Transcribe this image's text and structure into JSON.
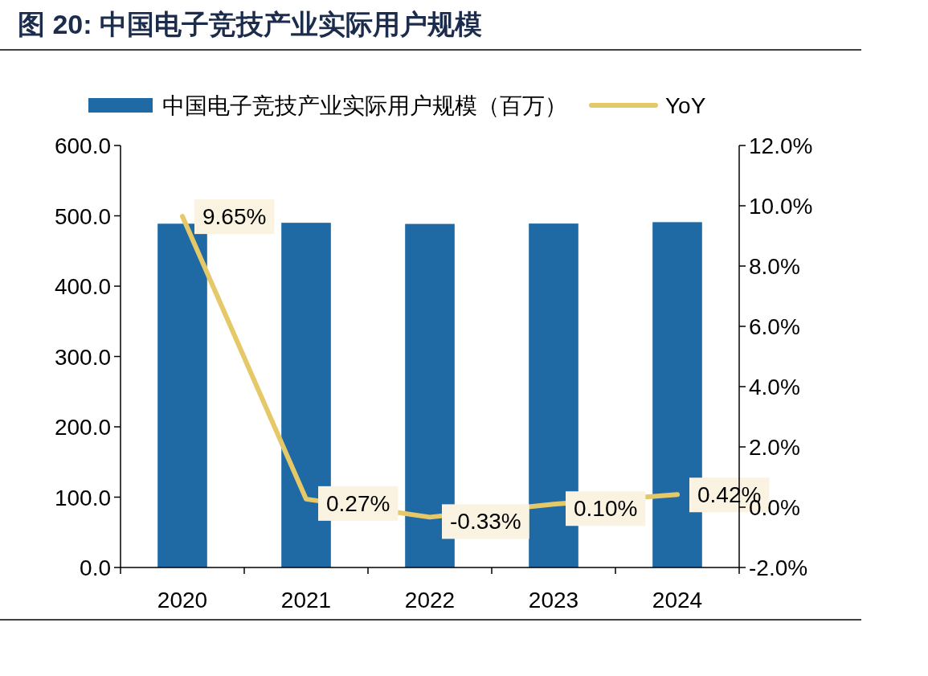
{
  "chart_data": {
    "type": "bar",
    "title": "图 20:  中国电子竞技产业实际用户规模",
    "categories": [
      "2020",
      "2021",
      "2022",
      "2023",
      "2024"
    ],
    "series": [
      {
        "name": "中国电子竞技产业实际用户规模（百万）",
        "color": "#1f69a4",
        "values": [
          488.8,
          490.1,
          488.5,
          489.0,
          491.0
        ]
      },
      {
        "name": "YoY",
        "type": "line",
        "axis": "y2",
        "color": "#e5c867",
        "values": [
          9.65,
          0.27,
          -0.33,
          0.1,
          0.42
        ],
        "value_labels": [
          "9.65%",
          "0.27%",
          "-0.33%",
          "0.10%",
          "0.42%"
        ]
      }
    ],
    "ylim": [
      0,
      600
    ],
    "yticks": [
      {
        "value": 0,
        "label": "0.0"
      },
      {
        "value": 100,
        "label": "100.0"
      },
      {
        "value": 200,
        "label": "200.0"
      },
      {
        "value": 300,
        "label": "300.0"
      },
      {
        "value": 400,
        "label": "400.0"
      },
      {
        "value": 500,
        "label": "500.0"
      },
      {
        "value": 600,
        "label": "600.0"
      }
    ],
    "y2lim": [
      -2,
      12
    ],
    "y2ticks": [
      {
        "value": -2,
        "label": "-2.0%"
      },
      {
        "value": 0,
        "label": "0.0%"
      },
      {
        "value": 2,
        "label": "2.0%"
      },
      {
        "value": 4,
        "label": "4.0%"
      },
      {
        "value": 6,
        "label": "6.0%"
      },
      {
        "value": 8,
        "label": "8.0%"
      },
      {
        "value": 10,
        "label": "10.0%"
      },
      {
        "value": 12,
        "label": "12.0%"
      }
    ],
    "legend": "top",
    "grid": false
  }
}
